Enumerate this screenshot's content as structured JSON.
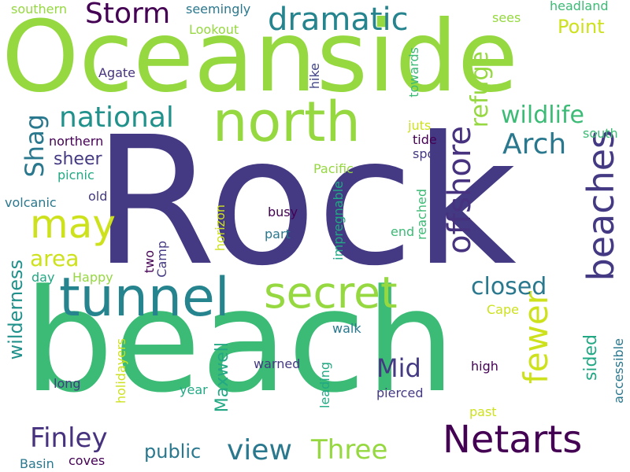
{
  "words": [
    {
      "text": "Rock",
      "color": "#443a83"
    },
    {
      "text": "beach",
      "color": "#3bbb75"
    },
    {
      "text": "Oceanside",
      "color": "#95d840"
    },
    {
      "text": "north",
      "color": "#95d840"
    },
    {
      "text": "tunnel",
      "color": "#25848e"
    },
    {
      "text": "secret",
      "color": "#95d840"
    },
    {
      "text": "beaches",
      "color": "#443a83"
    },
    {
      "text": "Netarts",
      "color": "#440154"
    },
    {
      "text": "may",
      "color": "#cde11d"
    },
    {
      "text": "offshore",
      "color": "#46327e"
    },
    {
      "text": "fewer",
      "color": "#cde11d"
    },
    {
      "text": "dramatic",
      "color": "#25848e"
    },
    {
      "text": "Storm",
      "color": "#440154"
    },
    {
      "text": "national",
      "color": "#21918c"
    },
    {
      "text": "Arch",
      "color": "#2a788e"
    },
    {
      "text": "wildlife",
      "color": "#3bbb75"
    },
    {
      "text": "refuge",
      "color": "#95d840"
    },
    {
      "text": "Shag",
      "color": "#2a788e"
    },
    {
      "text": "Finley",
      "color": "#46327e"
    },
    {
      "text": "Three",
      "color": "#95d840"
    },
    {
      "text": "view",
      "color": "#2a788e"
    },
    {
      "text": "Mid",
      "color": "#443a83"
    },
    {
      "text": "closed",
      "color": "#2a788e"
    },
    {
      "text": "area",
      "color": "#cde11d"
    },
    {
      "text": "public",
      "color": "#2a788e"
    },
    {
      "text": "wilderness",
      "color": "#21918c"
    },
    {
      "text": "Maxwell",
      "color": "#22a884"
    },
    {
      "text": "sided",
      "color": "#22a884"
    },
    {
      "text": "Point",
      "color": "#cde11d"
    },
    {
      "text": "sheer",
      "color": "#443a83"
    },
    {
      "text": "southern",
      "color": "#95d840"
    },
    {
      "text": "seemingly",
      "color": "#2a788e"
    },
    {
      "text": "headland",
      "color": "#3bbb75"
    },
    {
      "text": "Lookout",
      "color": "#95d840"
    },
    {
      "text": "sees",
      "color": "#95d840"
    },
    {
      "text": "Agate",
      "color": "#46327e"
    },
    {
      "text": "hike",
      "color": "#414487"
    },
    {
      "text": "towards",
      "color": "#3bbb75"
    },
    {
      "text": "juts",
      "color": "#cde11d"
    },
    {
      "text": "tide",
      "color": "#440154"
    },
    {
      "text": "spot",
      "color": "#443a83"
    },
    {
      "text": "south",
      "color": "#3bbb75"
    },
    {
      "text": "northern",
      "color": "#440154"
    },
    {
      "text": "picnic",
      "color": "#22a884"
    },
    {
      "text": "Pacific",
      "color": "#95d840"
    },
    {
      "text": "old",
      "color": "#443a83"
    },
    {
      "text": "volcanic",
      "color": "#2a788e"
    },
    {
      "text": "horizon",
      "color": "#cde11d"
    },
    {
      "text": "busy",
      "color": "#440154"
    },
    {
      "text": "impregnable",
      "color": "#22a884"
    },
    {
      "text": "reached",
      "color": "#3bbb75"
    },
    {
      "text": "end",
      "color": "#3bbb75"
    },
    {
      "text": "part",
      "color": "#2a788e"
    },
    {
      "text": "two",
      "color": "#440154"
    },
    {
      "text": "Camp",
      "color": "#443a83"
    },
    {
      "text": "day",
      "color": "#22a884"
    },
    {
      "text": "Happy",
      "color": "#95d840"
    },
    {
      "text": "Cape",
      "color": "#cde11d"
    },
    {
      "text": "walk",
      "color": "#2a788e"
    },
    {
      "text": "warned",
      "color": "#443a83"
    },
    {
      "text": "high",
      "color": "#440154"
    },
    {
      "text": "long",
      "color": "#443a83"
    },
    {
      "text": "year",
      "color": "#22a884"
    },
    {
      "text": "holidayers",
      "color": "#cde11d"
    },
    {
      "text": "leading",
      "color": "#22a884"
    },
    {
      "text": "pierced",
      "color": "#443a83"
    },
    {
      "text": "past",
      "color": "#cde11d"
    },
    {
      "text": "accessible",
      "color": "#2a788e"
    },
    {
      "text": "Basin",
      "color": "#2a788e"
    },
    {
      "text": "coves",
      "color": "#440154"
    }
  ]
}
